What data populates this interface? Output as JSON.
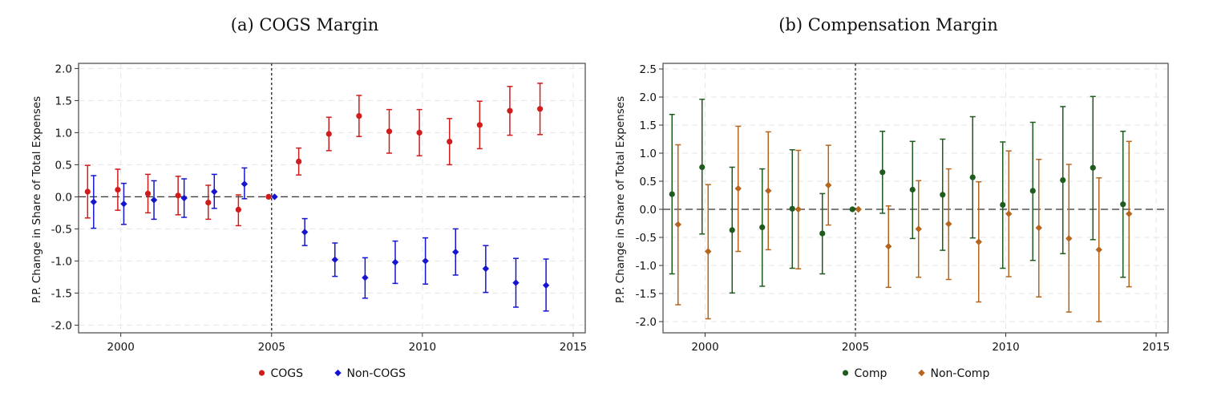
{
  "chart_data": [
    {
      "type": "scatter",
      "title": "(a) COGS Margin",
      "xlabel": "",
      "ylabel": "P.P. Change in Share of Total Expenses",
      "xlim": [
        1998.6,
        2015.4
      ],
      "ylim": [
        -2.12,
        2.08
      ],
      "xticks": [
        2000,
        2005,
        2010,
        2015
      ],
      "xtick_labels": [
        "2000",
        "2005",
        "2010",
        "2015"
      ],
      "yticks": [
        -2.0,
        -1.5,
        -1.0,
        -0.5,
        0.0,
        0.5,
        1.0,
        1.5,
        2.0
      ],
      "ytick_labels": [
        "-2.0",
        "-1.5",
        "-1.0",
        "-0.5",
        "0.0",
        "0.5",
        "1.0",
        "1.5",
        "2.0"
      ],
      "event_line_x": 2005,
      "zero_line_y": 0,
      "series": [
        {
          "name": "COGS",
          "color": "#d01c1c",
          "marker": "circle",
          "x": [
            1999,
            2000,
            2001,
            2002,
            2003,
            2004,
            2005,
            2006,
            2007,
            2008,
            2009,
            2010,
            2011,
            2012,
            2013,
            2014
          ],
          "y": [
            0.08,
            0.11,
            0.05,
            0.02,
            -0.09,
            -0.2,
            0.0,
            0.55,
            0.98,
            1.26,
            1.02,
            1.0,
            0.86,
            1.12,
            1.34,
            1.37
          ],
          "lower": [
            -0.33,
            -0.21,
            -0.25,
            -0.28,
            -0.35,
            -0.45,
            0.0,
            0.34,
            0.72,
            0.94,
            0.68,
            0.64,
            0.5,
            0.75,
            0.96,
            0.97
          ],
          "upper": [
            0.49,
            0.43,
            0.35,
            0.32,
            0.18,
            0.03,
            0.0,
            0.76,
            1.24,
            1.58,
            1.36,
            1.36,
            1.22,
            1.49,
            1.72,
            1.77
          ]
        },
        {
          "name": "Non-COGS",
          "color": "#1515d0",
          "marker": "diamond",
          "x": [
            1999,
            2000,
            2001,
            2002,
            2003,
            2004,
            2005,
            2006,
            2007,
            2008,
            2009,
            2010,
            2011,
            2012,
            2013,
            2014
          ],
          "y": [
            -0.08,
            -0.11,
            -0.05,
            -0.02,
            0.08,
            0.2,
            0.0,
            -0.55,
            -0.98,
            -1.26,
            -1.02,
            -1.0,
            -0.86,
            -1.12,
            -1.34,
            -1.38
          ],
          "lower": [
            -0.49,
            -0.43,
            -0.35,
            -0.32,
            -0.18,
            -0.03,
            0.0,
            -0.76,
            -1.24,
            -1.58,
            -1.35,
            -1.36,
            -1.22,
            -1.49,
            -1.72,
            -1.78
          ],
          "upper": [
            0.33,
            0.21,
            0.25,
            0.28,
            0.35,
            0.45,
            0.0,
            -0.34,
            -0.72,
            -0.95,
            -0.69,
            -0.64,
            -0.5,
            -0.76,
            -0.96,
            -0.97
          ]
        }
      ],
      "legend": [
        "COGS",
        "Non-COGS"
      ],
      "legend_position": "bottom-center"
    },
    {
      "type": "scatter",
      "title": "(b) Compensation Margin",
      "xlabel": "",
      "ylabel": "P.P. Change in Share of Total Expenses",
      "xlim": [
        1998.6,
        2015.4
      ],
      "ylim": [
        -2.2,
        2.6
      ],
      "xticks": [
        2000,
        2005,
        2010,
        2015
      ],
      "xtick_labels": [
        "2000",
        "2005",
        "2010",
        "2015"
      ],
      "yticks": [
        -2.0,
        -1.5,
        -1.0,
        -0.5,
        0.0,
        0.5,
        1.0,
        1.5,
        2.0,
        2.5
      ],
      "ytick_labels": [
        "-2.0",
        "-1.5",
        "-1.0",
        "-0.5",
        "0.0",
        "0.5",
        "1.0",
        "1.5",
        "2.0",
        "2.5"
      ],
      "event_line_x": 2005,
      "zero_line_y": 0,
      "series": [
        {
          "name": "Comp",
          "color": "#1e5c1e",
          "marker": "circle",
          "x": [
            1999,
            2000,
            2001,
            2002,
            2003,
            2004,
            2005,
            2006,
            2007,
            2008,
            2009,
            2010,
            2011,
            2012,
            2013,
            2014
          ],
          "y": [
            0.27,
            0.75,
            -0.37,
            -0.32,
            0.01,
            -0.43,
            0.0,
            0.66,
            0.35,
            0.26,
            0.57,
            0.08,
            0.33,
            0.52,
            0.74,
            0.09
          ],
          "lower": [
            -1.15,
            -0.44,
            -1.49,
            -1.37,
            -1.05,
            -1.15,
            0.0,
            -0.07,
            -0.52,
            -0.73,
            -0.51,
            -1.05,
            -0.91,
            -0.79,
            -0.54,
            -1.21
          ],
          "upper": [
            1.69,
            1.96,
            0.75,
            0.72,
            1.06,
            0.28,
            0.0,
            1.39,
            1.21,
            1.25,
            1.65,
            1.2,
            1.55,
            1.83,
            2.01,
            1.39
          ]
        },
        {
          "name": "Non-Comp",
          "color": "#b5651d",
          "marker": "diamond",
          "x": [
            1999,
            2000,
            2001,
            2002,
            2003,
            2004,
            2005,
            2006,
            2007,
            2008,
            2009,
            2010,
            2011,
            2012,
            2013,
            2014
          ],
          "y": [
            -0.27,
            -0.75,
            0.37,
            0.33,
            0.0,
            0.43,
            0.0,
            -0.66,
            -0.35,
            -0.26,
            -0.58,
            -0.08,
            -0.33,
            -0.52,
            -0.72,
            -0.08
          ],
          "lower": [
            -1.7,
            -1.95,
            -0.75,
            -0.72,
            -1.06,
            -0.28,
            0.0,
            -1.39,
            -1.21,
            -1.25,
            -1.65,
            -1.2,
            -1.56,
            -1.83,
            -2.0,
            -1.38
          ],
          "upper": [
            1.15,
            0.44,
            1.48,
            1.38,
            1.05,
            1.14,
            0.0,
            0.06,
            0.51,
            0.72,
            0.49,
            1.04,
            0.89,
            0.8,
            0.56,
            1.21
          ]
        }
      ],
      "legend": [
        "Comp",
        "Non-Comp"
      ],
      "legend_position": "bottom-center"
    }
  ]
}
